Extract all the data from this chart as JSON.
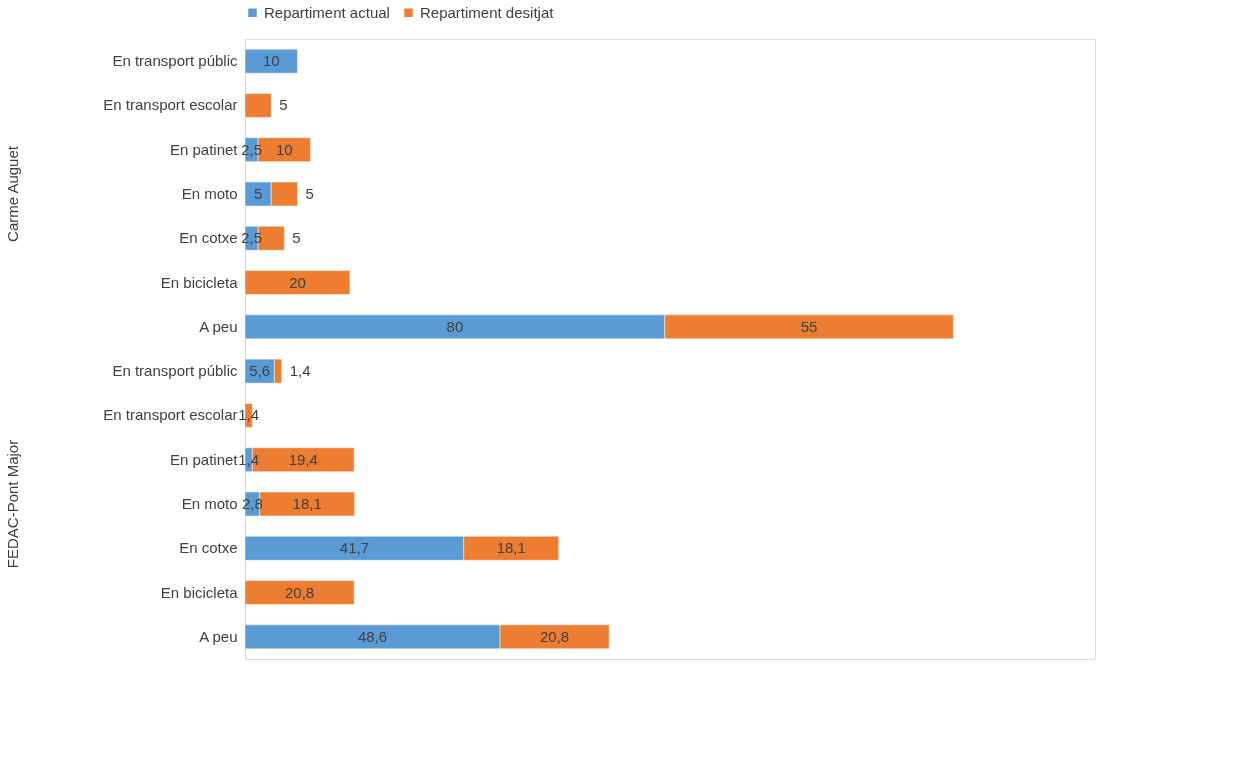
{
  "chart_data": {
    "type": "bar",
    "orientation": "horizontal",
    "stacked": true,
    "data_labels": true,
    "grid": false,
    "legend": "top",
    "categories": [
      "En transport públic",
      "En transport escolar",
      "En patinet",
      "En moto",
      "En cotxe",
      "En bicicleta",
      "A peu",
      "En transport públic",
      "En transport escolar",
      "En patinet",
      "En moto",
      "En cotxe",
      "En bicicleta",
      "A peu"
    ],
    "annotations": [
      "Carme Auguet",
      "FEDAC-Pont Major"
    ],
    "series": [
      {
        "name": "Repartiment actual",
        "color": "#5b9bd5",
        "values": [
          10,
          null,
          2.5,
          5,
          2.5,
          null,
          80,
          5.6,
          null,
          1.4,
          2.8,
          41.7,
          null,
          48.6
        ],
        "value_labels": [
          "10",
          null,
          "2,5",
          "5",
          "2,5",
          null,
          "80",
          "5,6",
          null,
          "1,4",
          "2,8",
          "41,7",
          null,
          "48,6"
        ]
      },
      {
        "name": "Repartiment desitjat",
        "color": "#ed7d31",
        "values": [
          null,
          5,
          10,
          5,
          5,
          20,
          55,
          1.4,
          1.4,
          19.4,
          18.1,
          18.1,
          20.8,
          20.8
        ],
        "value_labels": [
          null,
          "5",
          "10",
          "5",
          "5",
          "20",
          "55",
          "1,4",
          "1,4",
          "19,4",
          "18,1",
          "18,1",
          "20,8",
          "20,8"
        ]
      }
    ]
  }
}
